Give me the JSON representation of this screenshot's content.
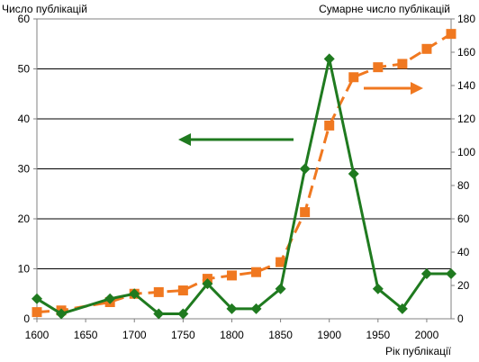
{
  "chart_data": {
    "type": "line",
    "ylabel_left": "Число публікацій",
    "ylabel_right": "Сумарне число публікацій",
    "xlabel": "Рік публікації",
    "xlim": [
      1600,
      2025
    ],
    "xticks": [
      1600,
      1650,
      1700,
      1750,
      1800,
      1850,
      1900,
      1950,
      2000
    ],
    "ylim_left": [
      0,
      60
    ],
    "yticks_left": [
      0,
      10,
      20,
      30,
      40,
      50,
      60
    ],
    "ylim_right": [
      0,
      180
    ],
    "yticks_right": [
      0,
      20,
      40,
      60,
      80,
      100,
      120,
      140,
      160,
      180
    ],
    "grid": "horizontal",
    "series": [
      {
        "axis": "left",
        "color": "#1f7a1f",
        "marker": "diamond",
        "line": "solid",
        "x": [
          1600,
          1625,
          1675,
          1700,
          1725,
          1750,
          1775,
          1800,
          1825,
          1850,
          1875,
          1900,
          1925,
          1950,
          1975,
          2000,
          2025
        ],
        "y": [
          4,
          1,
          4,
          5,
          1,
          1,
          7,
          2,
          2,
          6,
          30,
          52,
          29,
          6,
          2,
          9,
          9
        ]
      },
      {
        "axis": "right",
        "color": "#f07820",
        "marker": "square",
        "line": "dashed",
        "x": [
          1600,
          1625,
          1675,
          1700,
          1725,
          1750,
          1775,
          1800,
          1825,
          1850,
          1875,
          1900,
          1925,
          1950,
          1975,
          2000,
          2025
        ],
        "y": [
          4,
          5,
          10,
          15,
          16,
          17,
          24,
          26,
          28,
          34,
          64,
          116,
          145,
          151,
          153,
          162,
          171
        ]
      }
    ],
    "annotations": [
      {
        "type": "arrow",
        "direction": "left",
        "color": "#1f7a1f",
        "points_to_axis": "left"
      },
      {
        "type": "arrow",
        "direction": "right",
        "color": "#f07820",
        "points_to_axis": "right"
      }
    ]
  }
}
